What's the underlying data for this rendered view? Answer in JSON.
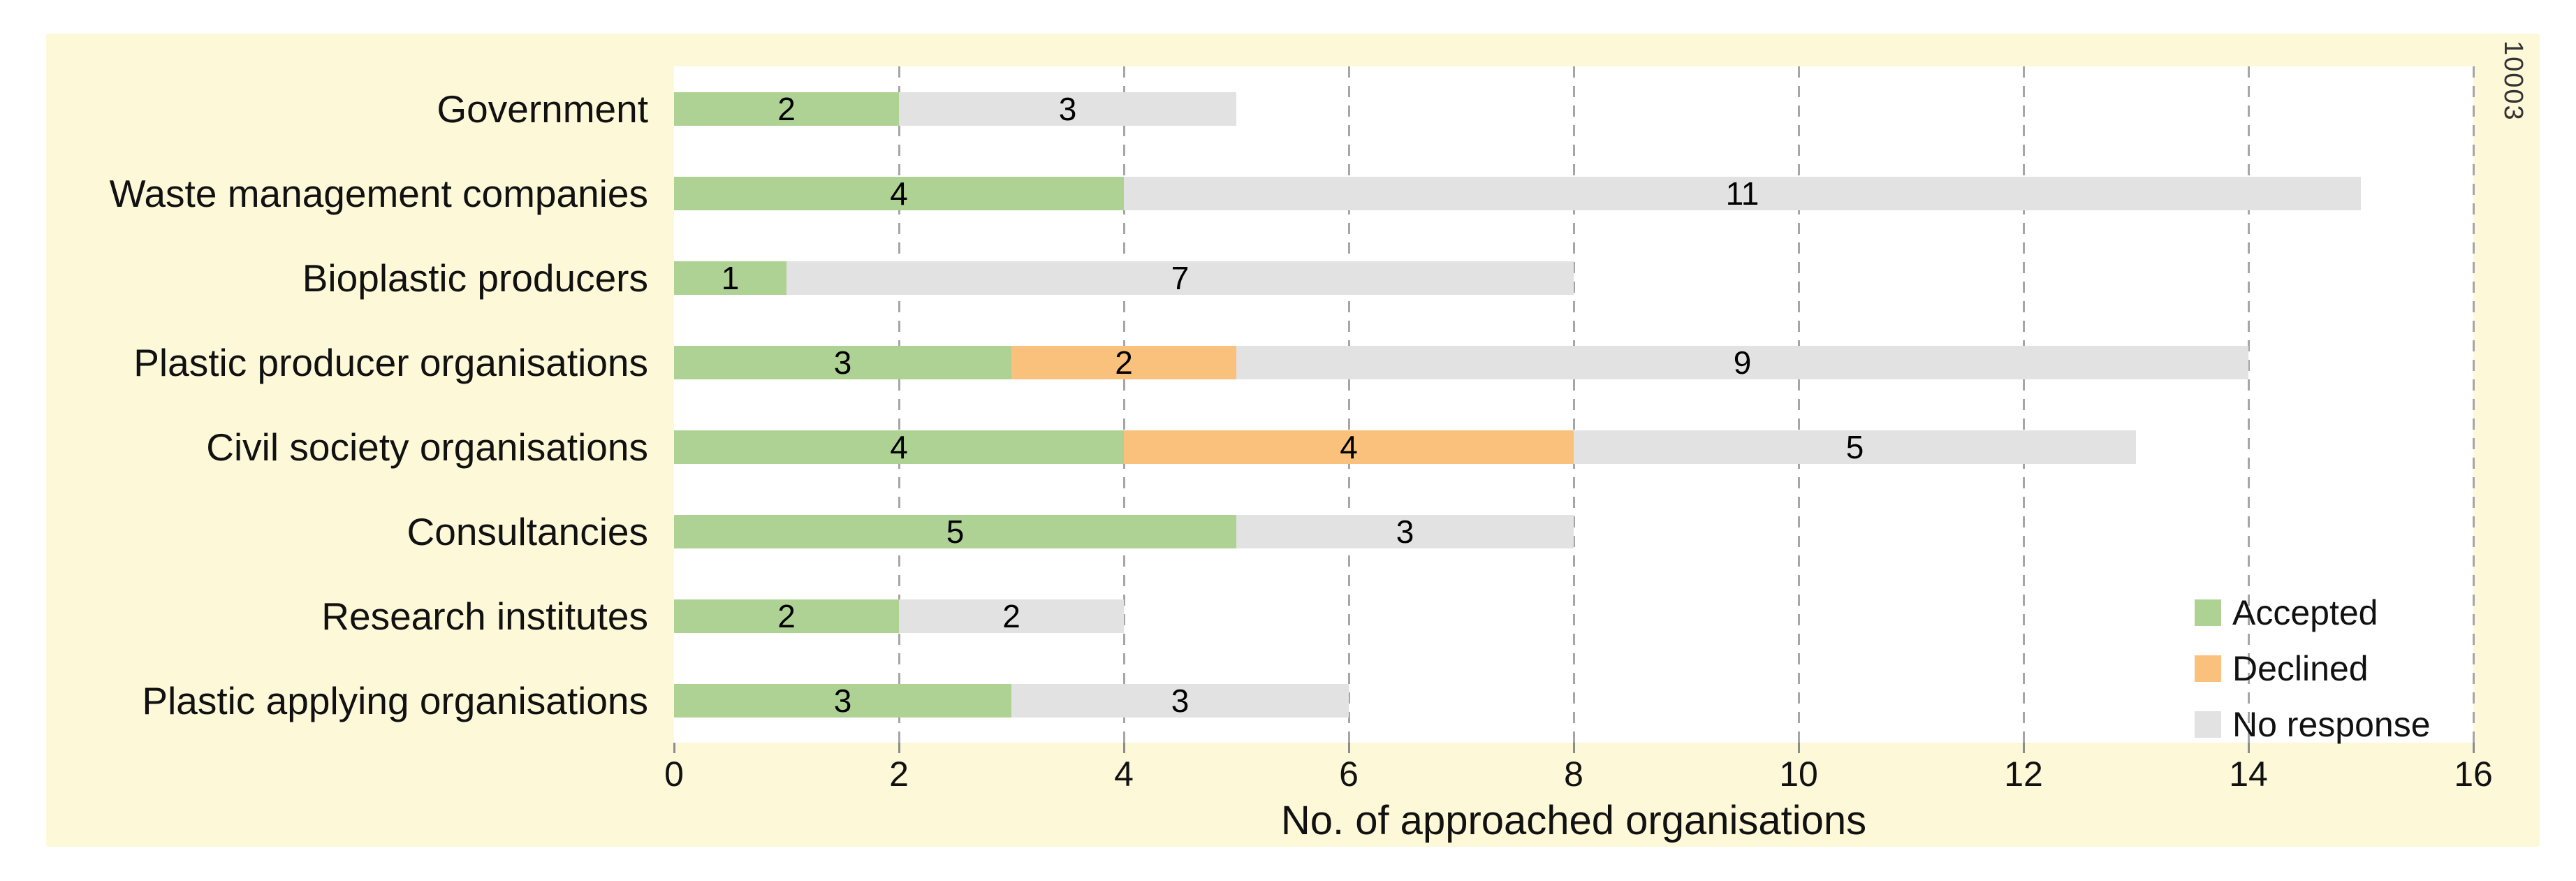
{
  "figure_number": "10003",
  "colors": {
    "card_background": "#FCF8D8",
    "plot_background": "#FFFFFF",
    "accepted": "#AED293",
    "declined": "#F9C17B",
    "no_response": "#E2E2E2",
    "gridline": "#A6A6A6",
    "text": "#111111"
  },
  "chart_data": {
    "type": "bar",
    "orientation": "horizontal",
    "stacked": true,
    "title": "",
    "xlabel": "No. of approached organisations",
    "ylabel": "",
    "xlim": [
      0,
      16
    ],
    "xticks": [
      0,
      2,
      4,
      6,
      8,
      10,
      12,
      14,
      16
    ],
    "grid": "vertical-dashed",
    "legend_position": "inside-bottom-right",
    "categories": [
      "Government",
      "Waste management companies",
      "Bioplastic producers",
      "Plastic producer organisations",
      "Civil society organisations",
      "Consultancies",
      "Research institutes",
      "Plastic applying organisations"
    ],
    "series": [
      {
        "name": "Accepted",
        "color": "#AED293",
        "values": [
          2,
          4,
          1,
          3,
          4,
          5,
          2,
          3
        ]
      },
      {
        "name": "Declined",
        "color": "#F9C17B",
        "values": [
          0,
          0,
          0,
          2,
          4,
          0,
          0,
          0
        ]
      },
      {
        "name": "No response",
        "color": "#E2E2E2",
        "values": [
          3,
          11,
          7,
          9,
          5,
          3,
          2,
          3
        ]
      }
    ],
    "totals": [
      5,
      15,
      8,
      14,
      13,
      8,
      4,
      6
    ]
  },
  "legend": {
    "items": [
      {
        "label": "Accepted"
      },
      {
        "label": "Declined"
      },
      {
        "label": "No response"
      }
    ]
  }
}
